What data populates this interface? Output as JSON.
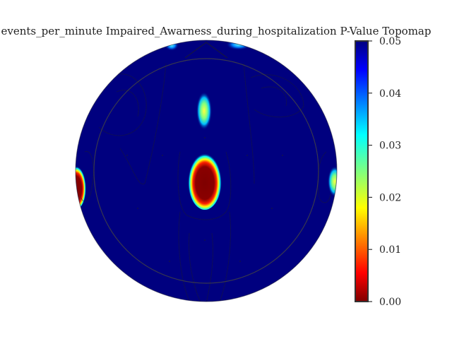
{
  "chart_data": {
    "type": "heatmap",
    "title": "events_per_minute Impaired_Awarness_during_hospitalization P-Value Topomap",
    "xlabel": "",
    "ylabel": "",
    "colormap": "jet",
    "colorbar": {
      "range": [
        0.0,
        0.05
      ],
      "ticks": [
        {
          "value": 0.05,
          "label": "0.05"
        },
        {
          "value": 0.04,
          "label": "0.04"
        },
        {
          "value": 0.03,
          "label": "0.03"
        },
        {
          "value": 0.02,
          "label": "0.02"
        },
        {
          "value": 0.01,
          "label": "0.01"
        },
        {
          "value": 0.0,
          "label": "0.00"
        }
      ]
    },
    "background_value": 0.05,
    "hotspots": [
      {
        "region": "central",
        "min_p": 0.0
      },
      {
        "region": "frontal-midline",
        "min_p": 0.025
      },
      {
        "region": "left-temporal",
        "min_p": 0.0
      },
      {
        "region": "right-temporal",
        "min_p": 0.025
      },
      {
        "region": "top-edge-left",
        "min_p": 0.03
      },
      {
        "region": "top-edge-right",
        "min_p": 0.035
      }
    ],
    "grid": false
  }
}
